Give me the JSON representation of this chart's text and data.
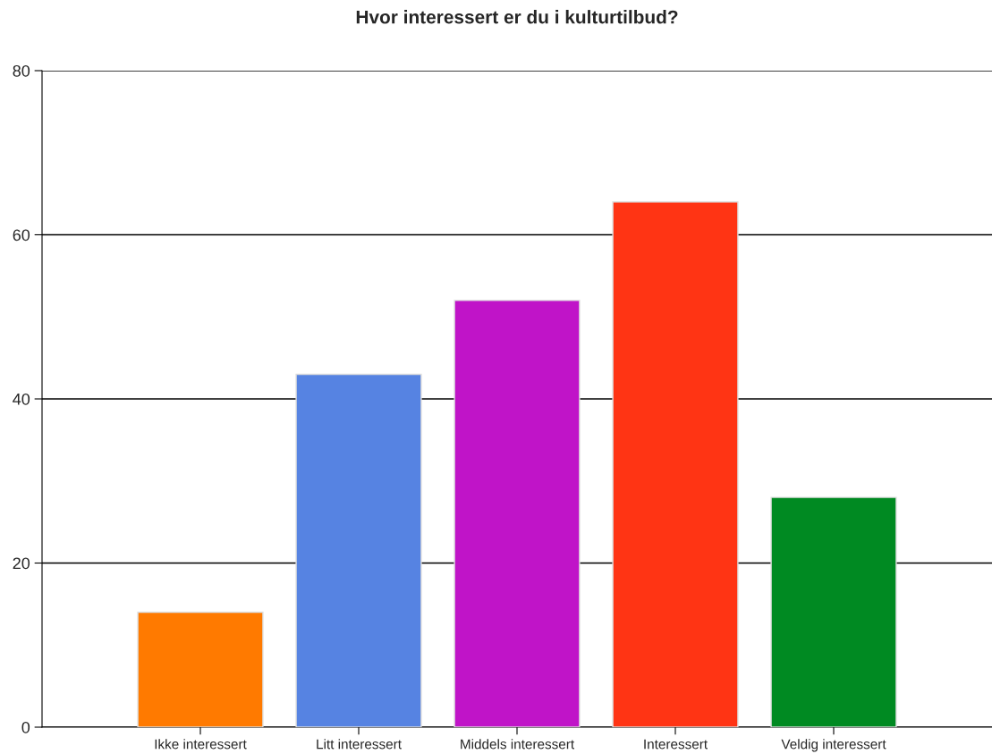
{
  "chart_data": {
    "type": "bar",
    "title": "Hvor interessert er du i kulturtilbud?",
    "categories": [
      "Ikke interessert",
      "Litt interessert",
      "Middels interessert",
      "Interessert",
      "Veldig interessert"
    ],
    "values": [
      14,
      43,
      52,
      64,
      28
    ],
    "colors": [
      "#ff7a00",
      "#5683e2",
      "#c014c8",
      "#ff3414",
      "#008a22"
    ],
    "ylim": [
      0,
      80
    ],
    "yticks": [
      0,
      20,
      40,
      60,
      80
    ],
    "grid": "y"
  }
}
